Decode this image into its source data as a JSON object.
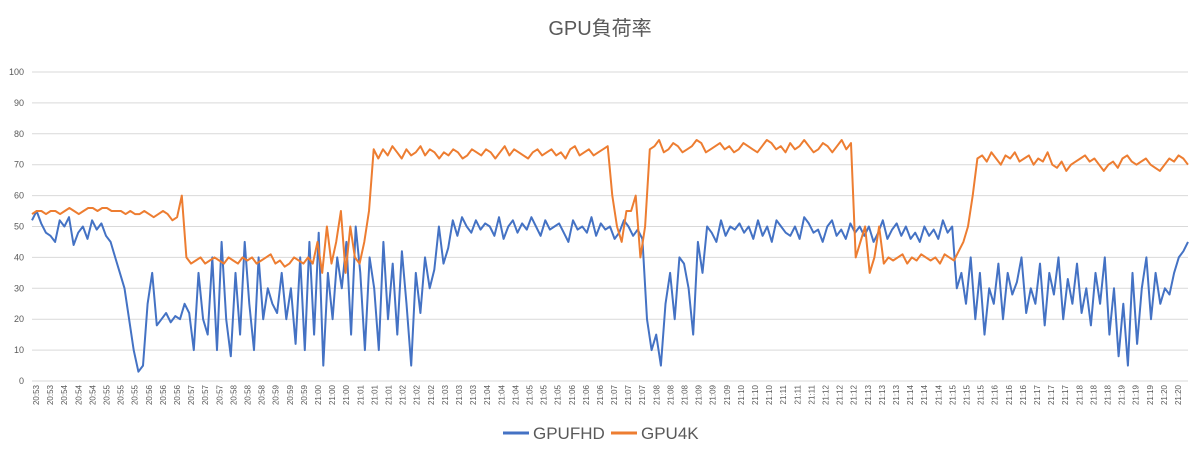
{
  "chart_data": {
    "type": "line",
    "title": "GPU負荷率",
    "xlabel": "",
    "ylabel": "",
    "ylim": [
      0,
      100
    ],
    "yticks": [
      0,
      10,
      20,
      30,
      40,
      50,
      60,
      70,
      80,
      90,
      100
    ],
    "grid": true,
    "legend_position": "bottom",
    "xtick_labels": [
      "20:53",
      "20:53",
      "20:54",
      "20:54",
      "20:54",
      "20:55",
      "20:55",
      "20:55",
      "20:56",
      "20:56",
      "20:56",
      "20:57",
      "20:57",
      "20:57",
      "20:58",
      "20:58",
      "20:58",
      "20:59",
      "20:59",
      "20:59",
      "21:00",
      "21:00",
      "21:00",
      "21:01",
      "21:01",
      "21:01",
      "21:02",
      "21:02",
      "21:02",
      "21:03",
      "21:03",
      "21:03",
      "21:04",
      "21:04",
      "21:04",
      "21:05",
      "21:05",
      "21:05",
      "21:06",
      "21:06",
      "21:06",
      "21:07",
      "21:07",
      "21:07",
      "21:08",
      "21:08",
      "21:08",
      "21:09",
      "21:09",
      "21:09",
      "21:10",
      "21:10",
      "21:10",
      "21:11",
      "21:11",
      "21:11",
      "21:12",
      "21:12",
      "21:12",
      "21:13",
      "21:13",
      "21:13",
      "21:14",
      "21:14",
      "21:14",
      "21:15",
      "21:15",
      "21:15",
      "21:16",
      "21:16",
      "21:16",
      "21:17",
      "21:17",
      "21:17",
      "21:18",
      "21:18",
      "21:18",
      "21:19",
      "21:19",
      "21:19",
      "21:20",
      "21:20"
    ],
    "series": [
      {
        "name": "GPUFHD",
        "color": "#4472C4",
        "values": [
          52,
          55,
          51,
          48,
          47,
          45,
          52,
          50,
          53,
          44,
          48,
          50,
          46,
          52,
          49,
          51,
          47,
          45,
          40,
          35,
          30,
          20,
          10,
          3,
          5,
          25,
          35,
          18,
          20,
          22,
          19,
          21,
          20,
          25,
          22,
          10,
          35,
          20,
          15,
          40,
          10,
          45,
          20,
          8,
          35,
          15,
          45,
          25,
          10,
          40,
          20,
          30,
          25,
          22,
          35,
          20,
          30,
          12,
          40,
          10,
          45,
          15,
          48,
          5,
          35,
          20,
          40,
          30,
          45,
          15,
          50,
          35,
          10,
          40,
          30,
          10,
          45,
          20,
          38,
          15,
          42,
          25,
          5,
          35,
          22,
          40,
          30,
          36,
          50,
          38,
          43,
          52,
          47,
          53,
          50,
          48,
          52,
          49,
          51,
          50,
          47,
          53,
          46,
          50,
          52,
          48,
          51,
          49,
          53,
          50,
          47,
          52,
          49,
          50,
          51,
          48,
          45,
          52,
          49,
          50,
          48,
          53,
          47,
          51,
          49,
          50,
          46,
          48,
          52,
          50,
          47,
          49,
          46,
          20,
          10,
          15,
          5,
          25,
          35,
          20,
          40,
          38,
          30,
          15,
          45,
          35,
          50,
          48,
          45,
          52,
          47,
          50,
          49,
          51,
          48,
          50,
          46,
          52,
          47,
          50,
          45,
          52,
          50,
          48,
          47,
          50,
          46,
          53,
          51,
          48,
          49,
          45,
          50,
          52,
          47,
          49,
          46,
          51,
          48,
          50,
          47,
          50,
          45,
          48,
          52,
          46,
          49,
          51,
          47,
          50,
          46,
          48,
          45,
          50,
          47,
          49,
          46,
          52,
          48,
          50,
          30,
          35,
          25,
          40,
          20,
          35,
          15,
          30,
          25,
          38,
          20,
          35,
          28,
          32,
          40,
          22,
          30,
          25,
          38,
          18,
          35,
          28,
          40,
          20,
          33,
          25,
          38,
          22,
          30,
          18,
          35,
          25,
          40,
          15,
          30,
          8,
          25,
          5,
          35,
          12,
          30,
          40,
          20,
          35,
          25,
          30,
          28,
          35,
          40,
          42,
          45
        ]
      },
      {
        "name": "GPU4K",
        "color": "#ED7D31",
        "values": [
          54,
          55,
          55,
          54,
          55,
          55,
          54,
          55,
          56,
          55,
          54,
          55,
          56,
          56,
          55,
          56,
          56,
          55,
          55,
          55,
          54,
          55,
          54,
          54,
          55,
          54,
          53,
          54,
          55,
          54,
          52,
          53,
          60,
          40,
          38,
          39,
          40,
          38,
          39,
          40,
          39,
          38,
          40,
          39,
          38,
          40,
          39,
          40,
          38,
          39,
          40,
          41,
          38,
          39,
          37,
          38,
          40,
          39,
          38,
          40,
          38,
          45,
          35,
          50,
          38,
          45,
          55,
          35,
          50,
          40,
          38,
          45,
          55,
          75,
          72,
          75,
          73,
          76,
          74,
          72,
          75,
          73,
          74,
          76,
          73,
          75,
          74,
          72,
          74,
          73,
          75,
          74,
          72,
          73,
          75,
          74,
          73,
          75,
          74,
          72,
          74,
          76,
          73,
          75,
          74,
          73,
          72,
          74,
          75,
          73,
          74,
          75,
          73,
          74,
          72,
          75,
          76,
          73,
          74,
          75,
          73,
          74,
          75,
          76,
          60,
          50,
          45,
          55,
          55,
          60,
          40,
          50,
          75,
          76,
          78,
          74,
          75,
          77,
          76,
          74,
          75,
          76,
          78,
          77,
          74,
          75,
          76,
          77,
          75,
          76,
          74,
          75,
          77,
          76,
          75,
          74,
          76,
          78,
          77,
          75,
          76,
          74,
          77,
          75,
          76,
          78,
          76,
          74,
          75,
          77,
          76,
          74,
          76,
          78,
          75,
          77,
          40,
          45,
          50,
          35,
          40,
          50,
          38,
          40,
          39,
          40,
          41,
          38,
          40,
          39,
          41,
          40,
          39,
          40,
          38,
          41,
          40,
          39,
          42,
          45,
          50,
          60,
          72,
          73,
          71,
          74,
          72,
          70,
          73,
          72,
          74,
          71,
          72,
          73,
          70,
          72,
          71,
          74,
          70,
          69,
          71,
          68,
          70,
          71,
          72,
          73,
          71,
          72,
          70,
          68,
          70,
          71,
          69,
          72,
          73,
          71,
          70,
          71,
          72,
          70,
          69,
          68,
          70,
          72,
          71,
          73,
          72,
          70
        ]
      }
    ]
  }
}
